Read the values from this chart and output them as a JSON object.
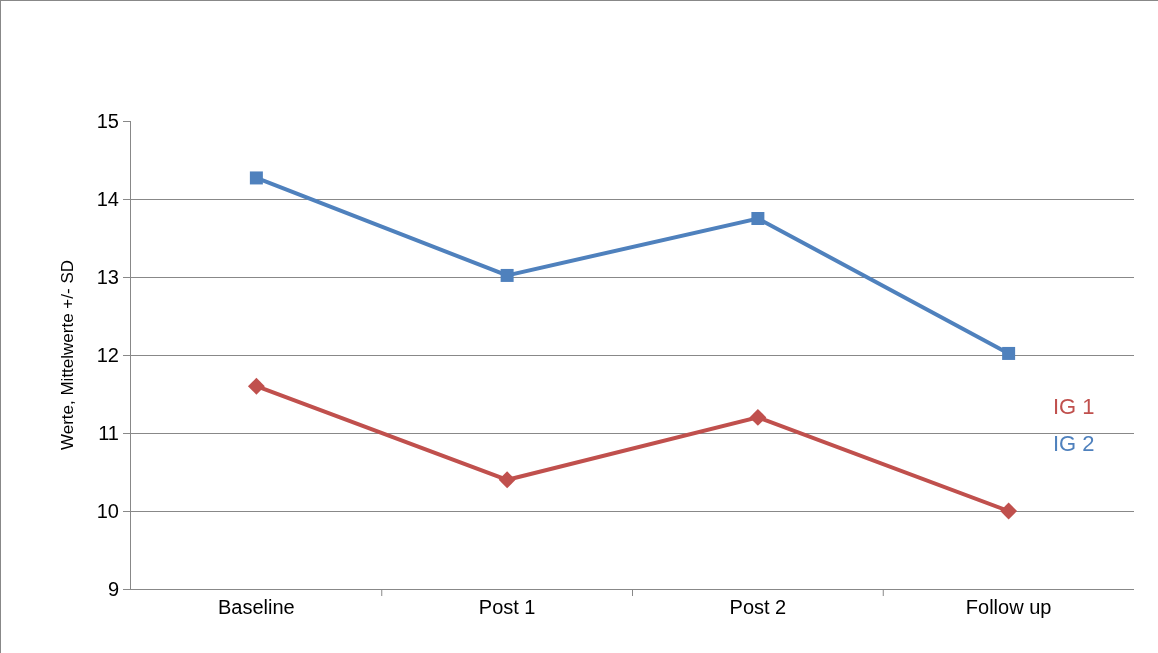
{
  "chart_data": {
    "type": "line",
    "ylabel": "Werte, Mittelwerte +/- SD",
    "categories": [
      "Baseline",
      "Post 1",
      "Post 2",
      "Follow up"
    ],
    "series": [
      {
        "name": "IG 1",
        "color": "#c0504d",
        "marker": "diamond",
        "values": [
          11.6,
          10.4,
          11.2,
          10.0
        ]
      },
      {
        "name": "IG 2",
        "color": "#4f81bd",
        "marker": "square",
        "values": [
          14.27,
          13.02,
          13.75,
          12.02
        ]
      }
    ],
    "ylim": [
      9,
      15
    ],
    "yticks": [
      9,
      10,
      11,
      12,
      13,
      14,
      15
    ],
    "grid": "y",
    "legend": "right",
    "line_style": "solid"
  }
}
